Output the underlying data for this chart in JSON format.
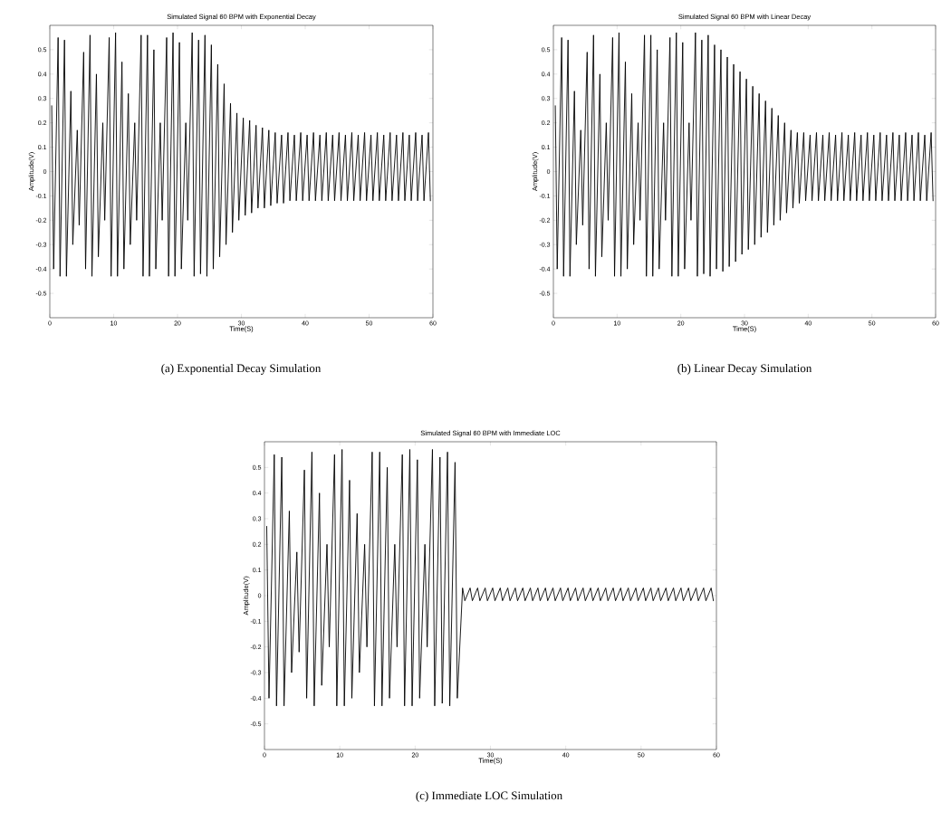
{
  "chart_data": [
    {
      "type": "line",
      "title": "Simulated Signal 60 BPM with Exponential Decay",
      "xlabel": "Time(S)",
      "ylabel": "Amplitude(V)",
      "annotations": [
        "(a) Exponential Decay Simulation"
      ],
      "xlim": [
        0,
        60
      ],
      "ylim": [
        -0.6,
        0.6
      ],
      "xticks": [
        0,
        10,
        20,
        30,
        40,
        50,
        60
      ],
      "yticks": [
        -0.5,
        -0.4,
        -0.3,
        -0.2,
        -0.1,
        0,
        0.1,
        0.2,
        0.3,
        0.4,
        0.5
      ],
      "series": [
        {
          "color": "#000000",
          "x": [
            0.3,
            0.6,
            1.3,
            1.6,
            2.3,
            2.6,
            3.3,
            3.6,
            4.3,
            4.6,
            5.3,
            5.6,
            6.3,
            6.6,
            7.3,
            7.6,
            8.3,
            8.6,
            9.3,
            9.6,
            10.3,
            10.6,
            11.3,
            11.6,
            12.3,
            12.6,
            13.3,
            13.6,
            14.3,
            14.6,
            15.3,
            15.6,
            16.3,
            16.6,
            17.3,
            17.6,
            18.3,
            18.6,
            19.3,
            19.6,
            20.3,
            20.6,
            21.3,
            21.6,
            22.3,
            22.6,
            23.3,
            23.6,
            24.3,
            24.6,
            25.3,
            25.6,
            26.3,
            26.6,
            27.3,
            27.6,
            28.3,
            28.6,
            29.3,
            29.6,
            30.3,
            30.6,
            31.3,
            31.6,
            32.3,
            32.6,
            33.3,
            33.6,
            34.3,
            34.6,
            35.3,
            35.6,
            36.3,
            36.6,
            37.3,
            37.6,
            38.3,
            38.6,
            39.3,
            39.6,
            40.3,
            40.6,
            41.3,
            41.6,
            42.3,
            42.6,
            43.3,
            43.6,
            44.3,
            44.6,
            45.3,
            45.6,
            46.3,
            46.6,
            47.3,
            47.6,
            48.3,
            48.6,
            49.3,
            49.6,
            50.3,
            50.6,
            51.3,
            51.6,
            52.3,
            52.6,
            53.3,
            53.6,
            54.3,
            54.6,
            55.3,
            55.6,
            56.3,
            56.6,
            57.3,
            57.6,
            58.3,
            58.6,
            59.3,
            59.6
          ],
          "values": [
            0.27,
            -0.4,
            0.55,
            -0.43,
            0.54,
            -0.43,
            0.33,
            -0.3,
            0.17,
            -0.22,
            0.49,
            -0.4,
            0.56,
            -0.43,
            0.4,
            -0.35,
            0.2,
            -0.2,
            0.55,
            -0.43,
            0.57,
            -0.43,
            0.45,
            -0.4,
            0.32,
            -0.3,
            0.2,
            -0.2,
            0.56,
            -0.43,
            0.56,
            -0.43,
            0.5,
            -0.4,
            0.2,
            -0.2,
            0.55,
            -0.43,
            0.57,
            -0.43,
            0.53,
            -0.4,
            0.2,
            -0.2,
            0.57,
            -0.43,
            0.54,
            -0.42,
            0.56,
            -0.43,
            0.52,
            -0.4,
            0.44,
            -0.35,
            0.36,
            -0.3,
            0.28,
            -0.25,
            0.24,
            -0.2,
            0.22,
            -0.18,
            0.21,
            -0.17,
            0.19,
            -0.15,
            0.18,
            -0.15,
            0.17,
            -0.14,
            0.16,
            -0.13,
            0.15,
            -0.13,
            0.16,
            -0.12,
            0.15,
            -0.12,
            0.16,
            -0.12,
            0.15,
            -0.12,
            0.16,
            -0.12,
            0.15,
            -0.12,
            0.16,
            -0.12,
            0.15,
            -0.12,
            0.16,
            -0.12,
            0.15,
            -0.12,
            0.16,
            -0.12,
            0.15,
            -0.12,
            0.16,
            -0.12,
            0.15,
            -0.12,
            0.16,
            -0.12,
            0.15,
            -0.12,
            0.16,
            -0.12,
            0.15,
            -0.12,
            0.16,
            -0.12,
            0.15,
            -0.12,
            0.16,
            -0.12,
            0.15,
            -0.12,
            0.16,
            -0.12
          ]
        }
      ]
    },
    {
      "type": "line",
      "title": "Simulated Signal 60 BPM with Linear Decay",
      "xlabel": "Time(S)",
      "ylabel": "Amplitude(V)",
      "annotations": [
        "(b) Linear Decay Simulation"
      ],
      "xlim": [
        0,
        60
      ],
      "ylim": [
        -0.6,
        0.6
      ],
      "xticks": [
        0,
        10,
        20,
        30,
        40,
        50,
        60
      ],
      "yticks": [
        -0.5,
        -0.4,
        -0.3,
        -0.2,
        -0.1,
        0,
        0.1,
        0.2,
        0.3,
        0.4,
        0.5
      ],
      "series": [
        {
          "color": "#000000",
          "x": [
            0.3,
            0.6,
            1.3,
            1.6,
            2.3,
            2.6,
            3.3,
            3.6,
            4.3,
            4.6,
            5.3,
            5.6,
            6.3,
            6.6,
            7.3,
            7.6,
            8.3,
            8.6,
            9.3,
            9.6,
            10.3,
            10.6,
            11.3,
            11.6,
            12.3,
            12.6,
            13.3,
            13.6,
            14.3,
            14.6,
            15.3,
            15.6,
            16.3,
            16.6,
            17.3,
            17.6,
            18.3,
            18.6,
            19.3,
            19.6,
            20.3,
            20.6,
            21.3,
            21.6,
            22.3,
            22.6,
            23.3,
            23.6,
            24.3,
            24.6,
            25.3,
            25.6,
            26.3,
            26.6,
            27.3,
            27.6,
            28.3,
            28.6,
            29.3,
            29.6,
            30.3,
            30.6,
            31.3,
            31.6,
            32.3,
            32.6,
            33.3,
            33.6,
            34.3,
            34.6,
            35.3,
            35.6,
            36.3,
            36.6,
            37.3,
            37.6,
            38.3,
            38.6,
            39.3,
            39.6,
            40.3,
            40.6,
            41.3,
            41.6,
            42.3,
            42.6,
            43.3,
            43.6,
            44.3,
            44.6,
            45.3,
            45.6,
            46.3,
            46.6,
            47.3,
            47.6,
            48.3,
            48.6,
            49.3,
            49.6,
            50.3,
            50.6,
            51.3,
            51.6,
            52.3,
            52.6,
            53.3,
            53.6,
            54.3,
            54.6,
            55.3,
            55.6,
            56.3,
            56.6,
            57.3,
            57.6,
            58.3,
            58.6,
            59.3,
            59.6
          ],
          "values": [
            0.27,
            -0.4,
            0.55,
            -0.43,
            0.54,
            -0.43,
            0.33,
            -0.3,
            0.17,
            -0.22,
            0.49,
            -0.4,
            0.56,
            -0.43,
            0.4,
            -0.35,
            0.2,
            -0.2,
            0.55,
            -0.43,
            0.57,
            -0.43,
            0.45,
            -0.4,
            0.32,
            -0.3,
            0.2,
            -0.2,
            0.56,
            -0.43,
            0.56,
            -0.43,
            0.5,
            -0.4,
            0.2,
            -0.2,
            0.55,
            -0.43,
            0.57,
            -0.43,
            0.53,
            -0.4,
            0.2,
            -0.2,
            0.57,
            -0.43,
            0.54,
            -0.42,
            0.56,
            -0.43,
            0.52,
            -0.4,
            0.5,
            -0.41,
            0.47,
            -0.39,
            0.44,
            -0.37,
            0.41,
            -0.34,
            0.38,
            -0.32,
            0.35,
            -0.3,
            0.32,
            -0.27,
            0.29,
            -0.25,
            0.26,
            -0.22,
            0.23,
            -0.2,
            0.2,
            -0.17,
            0.17,
            -0.15,
            0.16,
            -0.13,
            0.16,
            -0.12,
            0.15,
            -0.12,
            0.16,
            -0.12,
            0.15,
            -0.12,
            0.16,
            -0.12,
            0.15,
            -0.12,
            0.16,
            -0.12,
            0.15,
            -0.12,
            0.16,
            -0.12,
            0.15,
            -0.12,
            0.16,
            -0.12,
            0.15,
            -0.12,
            0.16,
            -0.12,
            0.15,
            -0.12,
            0.16,
            -0.12,
            0.15,
            -0.12,
            0.16,
            -0.12,
            0.15,
            -0.12,
            0.16,
            -0.12,
            0.15,
            -0.12,
            0.16,
            -0.12
          ]
        }
      ]
    },
    {
      "type": "line",
      "title": "Simulated Signal 60 BPM with Immediate LOC",
      "xlabel": "Time(S)",
      "ylabel": "Amplitude(V)",
      "annotations": [
        "(c) Immediate LOC Simulation"
      ],
      "xlim": [
        0,
        60
      ],
      "ylim": [
        -0.6,
        0.6
      ],
      "xticks": [
        0,
        10,
        20,
        30,
        40,
        50,
        60
      ],
      "yticks": [
        -0.5,
        -0.4,
        -0.3,
        -0.2,
        -0.1,
        0,
        0.1,
        0.2,
        0.3,
        0.4,
        0.5
      ],
      "series": [
        {
          "color": "#000000",
          "x": [
            0.3,
            0.6,
            1.3,
            1.6,
            2.3,
            2.6,
            3.3,
            3.6,
            4.3,
            4.6,
            5.3,
            5.6,
            6.3,
            6.6,
            7.3,
            7.6,
            8.3,
            8.6,
            9.3,
            9.6,
            10.3,
            10.6,
            11.3,
            11.6,
            12.3,
            12.6,
            13.3,
            13.6,
            14.3,
            14.6,
            15.3,
            15.6,
            16.3,
            16.6,
            17.3,
            17.6,
            18.3,
            18.6,
            19.3,
            19.6,
            20.3,
            20.6,
            21.3,
            21.6,
            22.3,
            22.6,
            23.3,
            23.6,
            24.3,
            24.6,
            25.3,
            25.6,
            26.3,
            26.6,
            27.3,
            27.6,
            28.3,
            28.6,
            29.3,
            29.6,
            30.3,
            30.6,
            31.3,
            31.6,
            32.3,
            32.6,
            33.3,
            33.6,
            34.3,
            34.6,
            35.3,
            35.6,
            36.3,
            36.6,
            37.3,
            37.6,
            38.3,
            38.6,
            39.3,
            39.6,
            40.3,
            40.6,
            41.3,
            41.6,
            42.3,
            42.6,
            43.3,
            43.6,
            44.3,
            44.6,
            45.3,
            45.6,
            46.3,
            46.6,
            47.3,
            47.6,
            48.3,
            48.6,
            49.3,
            49.6,
            50.3,
            50.6,
            51.3,
            51.6,
            52.3,
            52.6,
            53.3,
            53.6,
            54.3,
            54.6,
            55.3,
            55.6,
            56.3,
            56.6,
            57.3,
            57.6,
            58.3,
            58.6,
            59.3,
            59.6
          ],
          "values": [
            0.27,
            -0.4,
            0.55,
            -0.43,
            0.54,
            -0.43,
            0.33,
            -0.3,
            0.17,
            -0.22,
            0.49,
            -0.4,
            0.56,
            -0.43,
            0.4,
            -0.35,
            0.2,
            -0.2,
            0.55,
            -0.43,
            0.57,
            -0.43,
            0.45,
            -0.4,
            0.32,
            -0.3,
            0.2,
            -0.2,
            0.56,
            -0.43,
            0.56,
            -0.43,
            0.5,
            -0.4,
            0.2,
            -0.2,
            0.55,
            -0.43,
            0.57,
            -0.43,
            0.53,
            -0.4,
            0.2,
            -0.2,
            0.57,
            -0.43,
            0.54,
            -0.42,
            0.56,
            -0.43,
            0.52,
            -0.4,
            0.03,
            -0.02,
            0.03,
            -0.02,
            0.03,
            -0.02,
            0.03,
            -0.02,
            0.03,
            -0.02,
            0.03,
            -0.02,
            0.03,
            -0.02,
            0.03,
            -0.02,
            0.03,
            -0.02,
            0.03,
            -0.02,
            0.03,
            -0.02,
            0.03,
            -0.02,
            0.03,
            -0.02,
            0.03,
            -0.02,
            0.03,
            -0.02,
            0.03,
            -0.02,
            0.03,
            -0.02,
            0.03,
            -0.02,
            0.03,
            -0.02,
            0.03,
            -0.02,
            0.03,
            -0.02,
            0.03,
            -0.02,
            0.03,
            -0.02,
            0.03,
            -0.02,
            0.03,
            -0.02,
            0.03,
            -0.02,
            0.03,
            -0.02,
            0.03,
            -0.02,
            0.03,
            -0.02,
            0.03,
            -0.02,
            0.03,
            -0.02,
            0.03,
            -0.02,
            0.03,
            -0.02,
            0.03,
            -0.02
          ]
        }
      ]
    }
  ]
}
